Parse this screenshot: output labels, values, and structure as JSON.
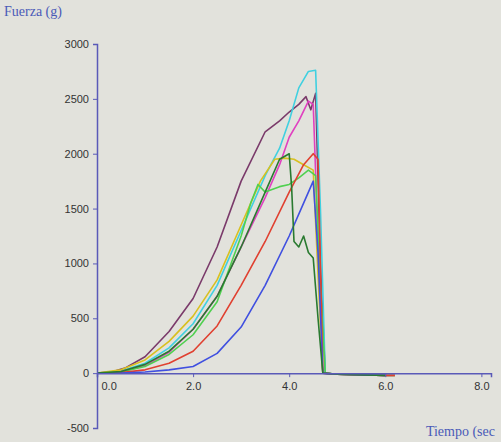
{
  "chart_data": {
    "type": "line",
    "ylabel": "Fuerza (g)",
    "xlabel": "Tiempo (sec",
    "xlim": [
      0,
      8.2
    ],
    "xticks": [
      {
        "value": 0,
        "label": "0.0"
      },
      {
        "value": 2,
        "label": "2.0"
      },
      {
        "value": 4,
        "label": "4.0"
      },
      {
        "value": 6,
        "label": "6.0"
      },
      {
        "value": 8,
        "label": "8.0"
      }
    ],
    "ylim": [
      -500,
      3000
    ],
    "yticks": [
      -500,
      0,
      500,
      1000,
      1500,
      2000,
      2500,
      3000
    ],
    "grid": false,
    "series": [
      {
        "color": "#7a3a6a",
        "x": [
          0,
          0.3,
          0.6,
          1.0,
          1.5,
          2.0,
          2.5,
          3.0,
          3.5,
          3.8,
          4.0,
          4.2,
          4.35,
          4.45,
          4.55,
          4.65,
          4.75,
          5.0,
          5.5,
          6.0,
          6.2
        ],
        "values": [
          0,
          10,
          50,
          150,
          380,
          680,
          1150,
          1750,
          2200,
          2300,
          2380,
          2450,
          2520,
          2400,
          2550,
          1000,
          0,
          -10,
          -15,
          -20,
          -20
        ]
      },
      {
        "color": "#40d0e0",
        "x": [
          0,
          0.5,
          1.0,
          1.5,
          2.0,
          2.5,
          3.0,
          3.5,
          3.8,
          4.0,
          4.2,
          4.4,
          4.55,
          4.65,
          4.75,
          5.0,
          6.0,
          6.2
        ],
        "values": [
          0,
          20,
          90,
          230,
          450,
          800,
          1300,
          1800,
          2050,
          2300,
          2600,
          2750,
          2760,
          1500,
          0,
          -10,
          -20,
          -20
        ]
      },
      {
        "color": "#e040c0",
        "x": [
          0,
          0.5,
          1.0,
          1.5,
          2.0,
          2.5,
          3.0,
          3.5,
          3.8,
          4.0,
          4.2,
          4.4,
          4.5,
          4.6,
          4.7,
          5.0,
          6.0
        ],
        "values": [
          0,
          15,
          70,
          190,
          400,
          700,
          1150,
          1600,
          1900,
          2150,
          2300,
          2480,
          2450,
          1200,
          0,
          -10,
          -20
        ]
      },
      {
        "color": "#d8c020",
        "x": [
          0,
          0.5,
          1.0,
          1.5,
          2.0,
          2.5,
          3.0,
          3.4,
          3.7,
          3.9,
          4.1,
          4.3,
          4.5,
          4.6,
          4.7,
          5.0,
          6.0,
          6.2
        ],
        "values": [
          0,
          30,
          120,
          290,
          520,
          850,
          1350,
          1750,
          1950,
          1960,
          1950,
          1900,
          1850,
          900,
          0,
          -10,
          -20,
          -20
        ]
      },
      {
        "color": "#50d050",
        "x": [
          0,
          0.5,
          1.0,
          1.5,
          2.0,
          2.5,
          3.0,
          3.2,
          3.35,
          3.5,
          3.8,
          4.0,
          4.2,
          4.4,
          4.55,
          4.65,
          4.75,
          5.0,
          6.0
        ],
        "values": [
          0,
          10,
          60,
          170,
          350,
          650,
          1250,
          1550,
          1720,
          1650,
          1700,
          1720,
          1780,
          1850,
          1800,
          800,
          0,
          -10,
          -20
        ]
      },
      {
        "color": "#e04030",
        "x": [
          0,
          0.5,
          1.0,
          1.5,
          2.0,
          2.5,
          3.0,
          3.5,
          4.0,
          4.3,
          4.5,
          4.6,
          4.7,
          5.0,
          6.0,
          6.2
        ],
        "values": [
          0,
          5,
          30,
          90,
          200,
          430,
          800,
          1200,
          1650,
          1900,
          2000,
          1950,
          0,
          -10,
          -20,
          -20
        ]
      },
      {
        "color": "#4050e0",
        "x": [
          0,
          0.5,
          1.0,
          1.5,
          2.0,
          2.5,
          3.0,
          3.5,
          4.0,
          4.3,
          4.5,
          4.6,
          4.7,
          5.0,
          6.0
        ],
        "values": [
          0,
          0,
          10,
          30,
          60,
          180,
          420,
          800,
          1250,
          1550,
          1750,
          1100,
          0,
          -10,
          -20
        ]
      },
      {
        "color": "#2a7a30",
        "x": [
          0,
          0.5,
          1.0,
          1.5,
          2.0,
          2.5,
          3.0,
          3.5,
          3.8,
          4.0,
          4.05,
          4.1,
          4.2,
          4.3,
          4.4,
          4.5,
          4.6,
          4.7,
          5.0,
          6.0
        ],
        "values": [
          0,
          15,
          80,
          200,
          400,
          700,
          1150,
          1650,
          1950,
          2000,
          1700,
          1200,
          1150,
          1250,
          1100,
          1050,
          500,
          0,
          -10,
          -20
        ]
      }
    ]
  }
}
